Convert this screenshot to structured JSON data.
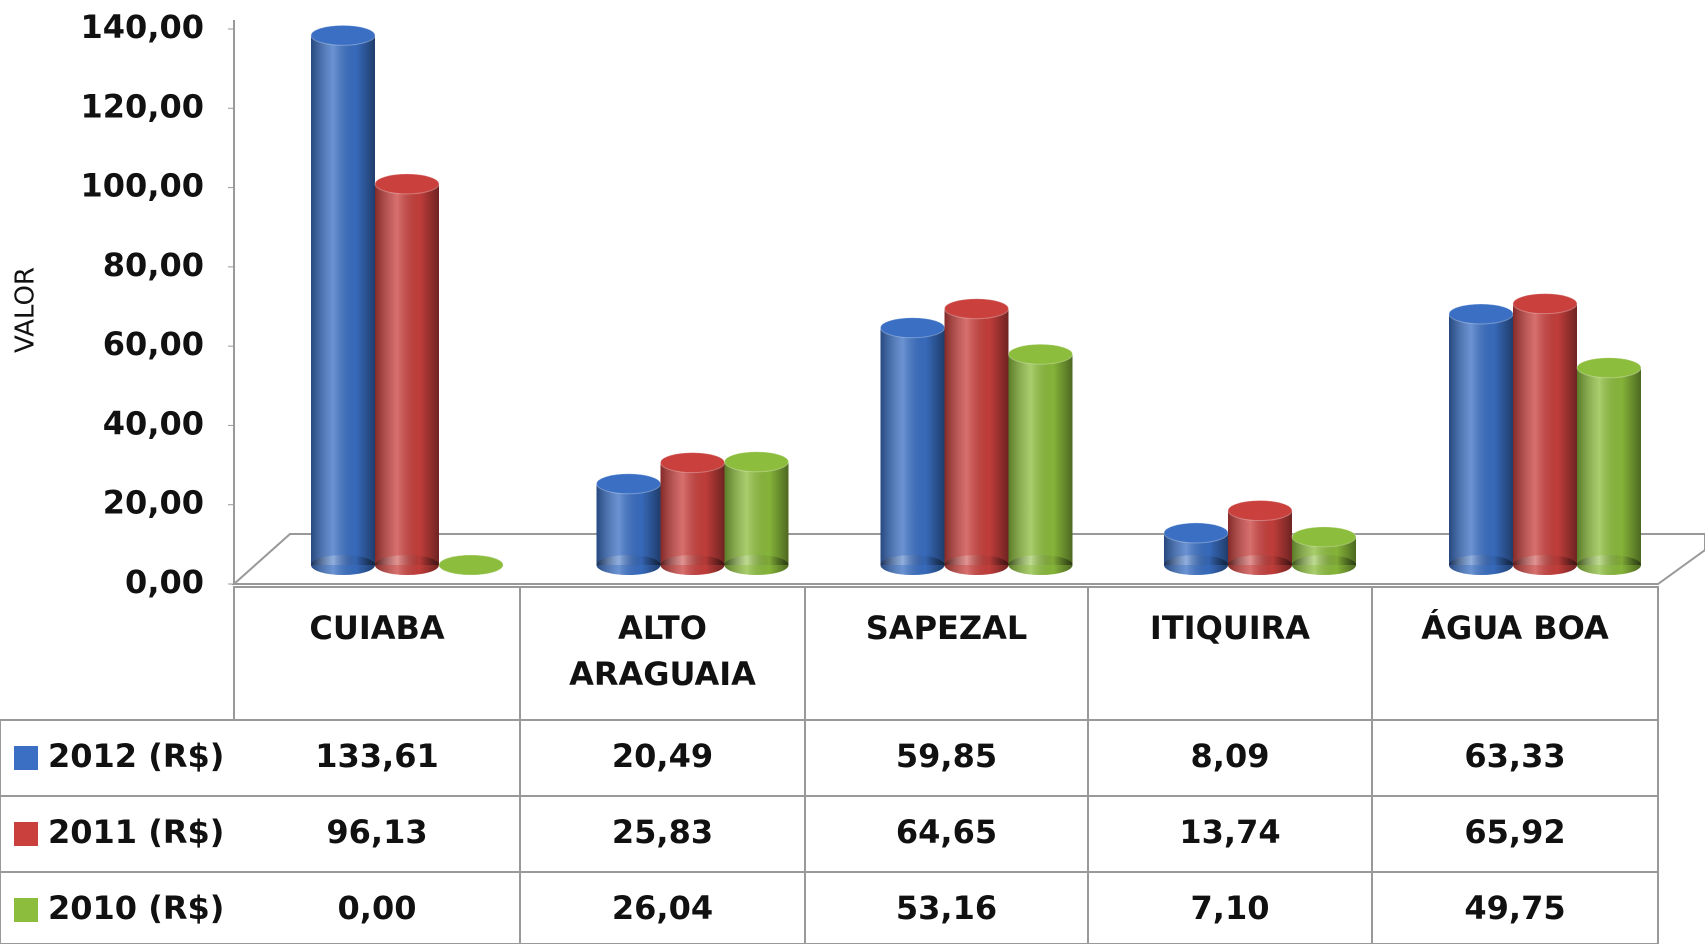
{
  "chart_data": {
    "type": "bar3d",
    "y_label": "VALOR",
    "categories": [
      "CUIABA",
      "ALTO ARAGUAIA",
      "SAPEZAL",
      "ITIQUIRA",
      "ÁGUA BOA"
    ],
    "series": [
      {
        "name": "2012 (R$)",
        "color": "#3a6fc4",
        "values": [
          133.61,
          20.49,
          59.85,
          8.09,
          63.33
        ],
        "value_labels": [
          "133,61",
          "20,49",
          "59,85",
          "8,09",
          "63,33"
        ]
      },
      {
        "name": "2011 (R$)",
        "color": "#c9403d",
        "values": [
          96.13,
          25.83,
          64.65,
          13.74,
          65.92
        ],
        "value_labels": [
          "96,13",
          "25,83",
          "64,65",
          "13,74",
          "65,92"
        ]
      },
      {
        "name": "2010 (R$)",
        "color": "#8cbd3c",
        "values": [
          0.0,
          26.04,
          53.16,
          7.1,
          49.75
        ],
        "value_labels": [
          "0,00",
          "26,04",
          "53,16",
          "7,10",
          "49,75"
        ]
      }
    ],
    "ylim": [
      0,
      140
    ],
    "yticks": [
      {
        "value": 0,
        "label": "0,00"
      },
      {
        "value": 20,
        "label": "20,00"
      },
      {
        "value": 40,
        "label": "40,00"
      },
      {
        "value": 60,
        "label": "60,00"
      },
      {
        "value": 80,
        "label": "80,00"
      },
      {
        "value": 100,
        "label": "100,00"
      },
      {
        "value": 120,
        "label": "120,00"
      },
      {
        "value": 140,
        "label": "140,00"
      }
    ]
  }
}
